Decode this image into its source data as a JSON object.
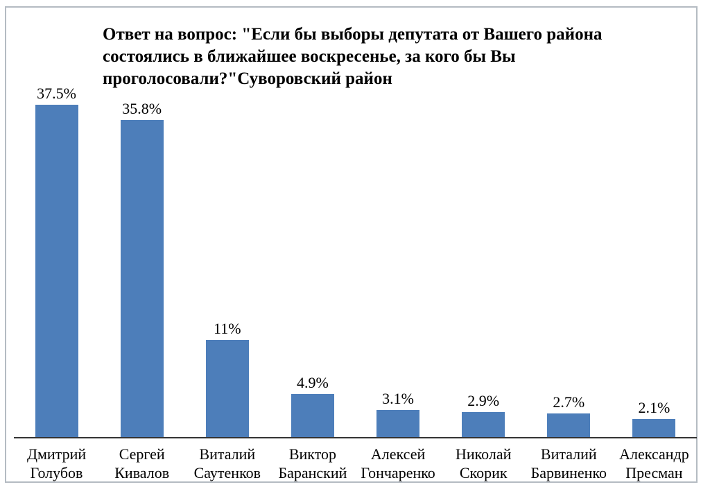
{
  "title": {
    "lines": [
      "Ответ на вопрос: \"Если бы выборы депутата от Вашего района",
      "состоялись в ближайшее воскресенье, за кого бы Вы",
      "проголосовали?\"Суворовский район"
    ]
  },
  "chart_data": {
    "type": "bar",
    "title": "Ответ на вопрос: \"Если бы выборы депутата от Вашего района состоялись в ближайшее воскресенье, за кого бы Вы проголосовали?\"Суворовский район",
    "categories": [
      "Дмитрий Голубов",
      "Сергей Кивалов",
      "Виталий Саутенков",
      "Виктор Баранский",
      "Алексей Гончаренко",
      "Николай Скорик",
      "Виталий Барвиненко",
      "Александр Пресман"
    ],
    "values": [
      37.5,
      35.8,
      11,
      4.9,
      3.1,
      2.9,
      2.7,
      2.1
    ],
    "value_labels": [
      "37.5%",
      "35.8%",
      "11%",
      "4.9%",
      "3.1%",
      "2.9%",
      "2.7%",
      "2.1%"
    ],
    "xlabel": "",
    "ylabel": "",
    "ylim": [
      0,
      40
    ],
    "grid": false,
    "legend": false,
    "bar_color": "#4d7eba",
    "axis_color": "#333333"
  }
}
